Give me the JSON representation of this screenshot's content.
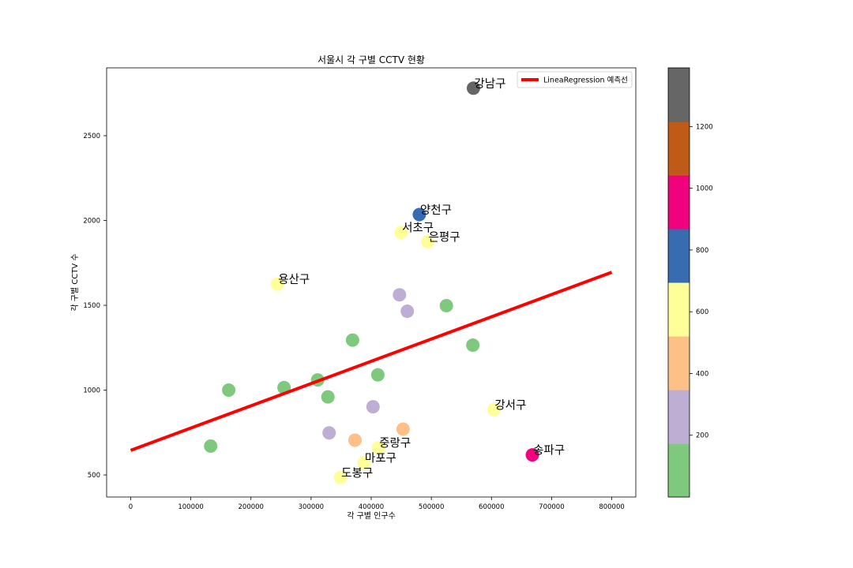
{
  "chart_data": {
    "type": "scatter",
    "title": "서울시 각 구별 CCTV 현황",
    "xlabel": "각 구별 인구수",
    "ylabel": "각 구별 CCTV 수",
    "xlim": [
      -40000,
      840000
    ],
    "ylim": [
      370,
      2900
    ],
    "x_ticks": [
      0,
      100000,
      200000,
      300000,
      400000,
      500000,
      600000,
      700000,
      800000
    ],
    "x_tick_labels": [
      "0",
      "100000",
      "200000",
      "300000",
      "400000",
      "500000",
      "600000",
      "700000",
      "800000"
    ],
    "y_ticks": [
      500,
      1000,
      1500,
      2000,
      2500
    ],
    "y_tick_labels": [
      "500",
      "1000",
      "1500",
      "2000",
      "2500"
    ],
    "grid": false,
    "legend": {
      "position": "top-right",
      "entries": [
        {
          "label": "LineaRegression 예측선",
          "color": "#ff0000"
        }
      ]
    },
    "regression_line": {
      "x": [
        0,
        800000
      ],
      "y": [
        645,
        1695
      ],
      "color": "#ff0000"
    },
    "colorbar": {
      "colormap": "Accent",
      "range": [
        0,
        1390
      ],
      "ticks": [
        200,
        400,
        600,
        800,
        1000,
        1200
      ],
      "tick_labels": [
        "200",
        "400",
        "600",
        "800",
        "1000",
        "1200"
      ],
      "colors": [
        "#7fc97f",
        "#beaed4",
        "#fdc086",
        "#ffff99",
        "#386cb0",
        "#f0027f",
        "#bf5b17",
        "#666666"
      ]
    },
    "points": [
      {
        "x": 570000,
        "y": 2780,
        "color": "#666666",
        "label": "강남구"
      },
      {
        "x": 480000,
        "y": 2035,
        "color": "#386cb0",
        "label": "양천구"
      },
      {
        "x": 450000,
        "y": 1930,
        "color": "#ffff99",
        "label": "서초구"
      },
      {
        "x": 494000,
        "y": 1875,
        "color": "#ffff99",
        "label": "은평구"
      },
      {
        "x": 244000,
        "y": 1625,
        "color": "#ffff99",
        "label": "용산구"
      },
      {
        "x": 447000,
        "y": 1562,
        "color": "#beaed4",
        "label": ""
      },
      {
        "x": 460000,
        "y": 1465,
        "color": "#beaed4",
        "label": ""
      },
      {
        "x": 525000,
        "y": 1498,
        "color": "#7fc97f",
        "label": ""
      },
      {
        "x": 369000,
        "y": 1295,
        "color": "#7fc97f",
        "label": ""
      },
      {
        "x": 569000,
        "y": 1265,
        "color": "#7fc97f",
        "label": ""
      },
      {
        "x": 411000,
        "y": 1090,
        "color": "#7fc97f",
        "label": ""
      },
      {
        "x": 311000,
        "y": 1060,
        "color": "#7fc97f",
        "label": ""
      },
      {
        "x": 163000,
        "y": 1000,
        "color": "#7fc97f",
        "label": ""
      },
      {
        "x": 255000,
        "y": 1015,
        "color": "#7fc97f",
        "label": ""
      },
      {
        "x": 328000,
        "y": 960,
        "color": "#7fc97f",
        "label": ""
      },
      {
        "x": 403000,
        "y": 902,
        "color": "#beaed4",
        "label": ""
      },
      {
        "x": 604000,
        "y": 885,
        "color": "#ffff99",
        "label": "강서구"
      },
      {
        "x": 453000,
        "y": 770,
        "color": "#fdc086",
        "label": ""
      },
      {
        "x": 330000,
        "y": 748,
        "color": "#beaed4",
        "label": ""
      },
      {
        "x": 373000,
        "y": 705,
        "color": "#fdc086",
        "label": ""
      },
      {
        "x": 133000,
        "y": 670,
        "color": "#7fc97f",
        "label": ""
      },
      {
        "x": 412000,
        "y": 660,
        "color": "#ffff99",
        "label": "중랑구"
      },
      {
        "x": 668000,
        "y": 618,
        "color": "#f0027f",
        "label": "송파구"
      },
      {
        "x": 388000,
        "y": 572,
        "color": "#ffff99",
        "label": "마포구"
      },
      {
        "x": 349000,
        "y": 485,
        "color": "#ffff99",
        "label": "도봉구"
      }
    ]
  }
}
